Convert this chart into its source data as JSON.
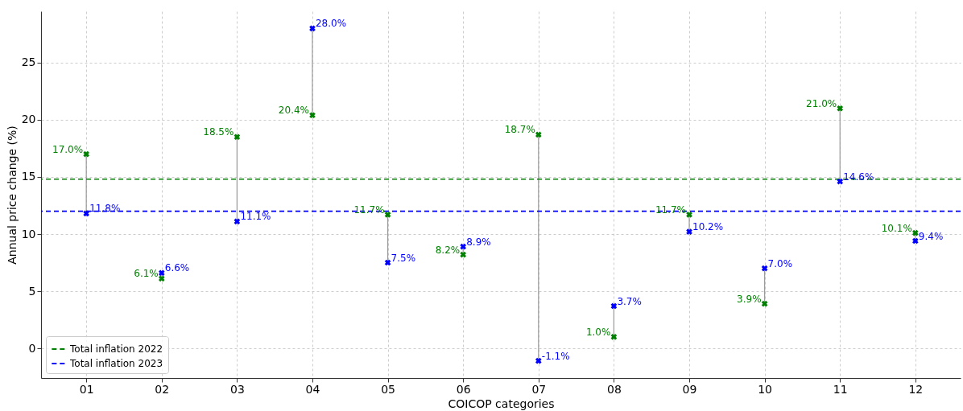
{
  "chart_data": {
    "type": "scatter",
    "xlabel": "COICOP categories",
    "ylabel": "Annual price change (%)",
    "categories": [
      "01",
      "02",
      "03",
      "04",
      "05",
      "06",
      "07",
      "08",
      "09",
      "10",
      "11",
      "12"
    ],
    "series": [
      {
        "color": "#008000",
        "values": [
          17.0,
          6.1,
          18.5,
          20.4,
          11.7,
          8.2,
          18.7,
          1.0,
          11.7,
          3.9,
          21.0,
          10.1
        ],
        "value_labels": [
          "17.0%",
          "6.1%",
          "18.5%",
          "20.4%",
          "11.7%",
          "8.2%",
          "18.7%",
          "1.0%",
          "11.7%",
          "3.9%",
          "21.0%",
          "10.1%"
        ]
      },
      {
        "color": "#0000ff",
        "values": [
          11.8,
          6.6,
          11.1,
          28.0,
          7.5,
          8.9,
          -1.1,
          3.7,
          10.2,
          7.0,
          14.6,
          9.4
        ],
        "value_labels": [
          "11.8%",
          "6.6%",
          "11.1%",
          "28.0%",
          "7.5%",
          "8.9%",
          "-1.1%",
          "3.7%",
          "10.2%",
          "7.0%",
          "14.6%",
          "9.4%"
        ]
      }
    ],
    "ylim": [
      -2.6,
      29.5
    ],
    "yticks": [
      0,
      5,
      10,
      15,
      20,
      25
    ],
    "ref_lines": [
      {
        "axis": "y",
        "value": 14.8,
        "label": "Total inflation 2022",
        "color": "#008000",
        "line_style": "dashed"
      },
      {
        "axis": "y",
        "value": 12.0,
        "label": "Total inflation 2023",
        "color": "#0000ff",
        "line_style": "dashed"
      }
    ],
    "marker": "cross",
    "grid": true,
    "legend": "bottom left"
  }
}
